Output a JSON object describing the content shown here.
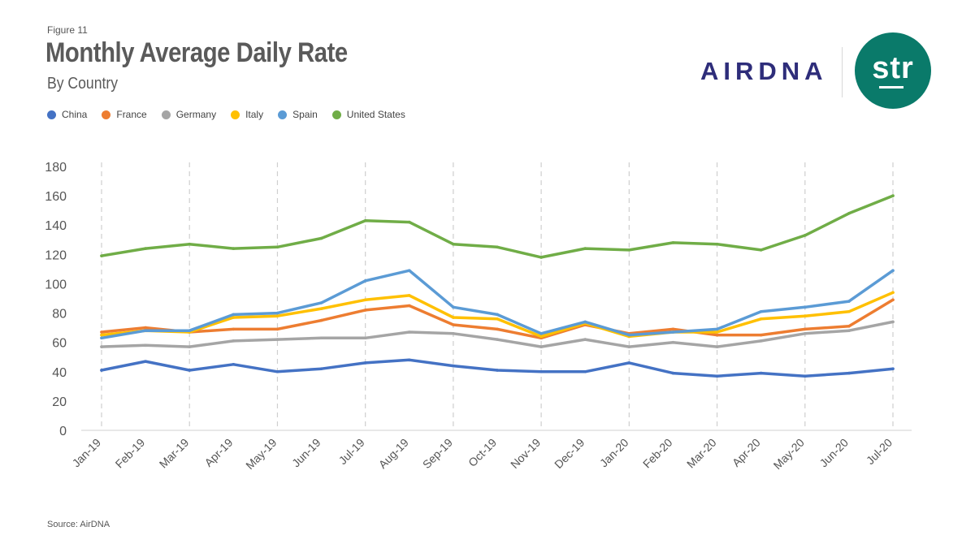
{
  "figure_label": "Figure 11",
  "logos": {
    "airdna": "AIRDNA",
    "str": "str"
  },
  "source": "Source: AirDNA",
  "chart_data": {
    "type": "line",
    "title": "Monthly Average Daily Rate",
    "subtitle": "By Country",
    "xlabel": "",
    "ylabel": "",
    "ylim": [
      0,
      180
    ],
    "yticks": [
      0,
      20,
      40,
      60,
      80,
      100,
      120,
      140,
      160,
      180
    ],
    "grid": "vertical-dashed",
    "legend_position": "top-left",
    "categories": [
      "Jan-19",
      "Feb-19",
      "Mar-19",
      "Apr-19",
      "May-19",
      "Jun-19",
      "Jul-19",
      "Aug-19",
      "Sep-19",
      "Oct-19",
      "Nov-19",
      "Dec-19",
      "Jan-20",
      "Feb-20",
      "Mar-20",
      "Apr-20",
      "May-20",
      "Jun-20",
      "Jul-20"
    ],
    "series": [
      {
        "name": "China",
        "color": "#4472c4",
        "values": [
          41,
          47,
          41,
          45,
          40,
          42,
          46,
          48,
          44,
          41,
          40,
          40,
          46,
          39,
          37,
          39,
          37,
          39,
          42
        ]
      },
      {
        "name": "France",
        "color": "#ed7d31",
        "values": [
          67,
          70,
          67,
          69,
          69,
          75,
          82,
          85,
          72,
          69,
          63,
          72,
          66,
          69,
          65,
          65,
          69,
          71,
          89
        ]
      },
      {
        "name": "Germany",
        "color": "#a5a5a5",
        "values": [
          57,
          58,
          57,
          61,
          62,
          63,
          63,
          67,
          66,
          62,
          57,
          62,
          57,
          60,
          57,
          61,
          66,
          68,
          74
        ]
      },
      {
        "name": "Italy",
        "color": "#ffc000",
        "values": [
          65,
          68,
          67,
          77,
          78,
          83,
          89,
          92,
          77,
          76,
          64,
          73,
          64,
          67,
          67,
          76,
          78,
          81,
          94
        ]
      },
      {
        "name": "Spain",
        "color": "#5b9bd5",
        "values": [
          63,
          68,
          68,
          79,
          80,
          87,
          102,
          109,
          84,
          79,
          66,
          74,
          65,
          67,
          69,
          81,
          84,
          88,
          109
        ]
      },
      {
        "name": "United States",
        "color": "#70ad47",
        "values": [
          119,
          124,
          127,
          124,
          125,
          131,
          143,
          142,
          127,
          125,
          118,
          124,
          123,
          128,
          127,
          123,
          133,
          148,
          160
        ]
      }
    ]
  }
}
